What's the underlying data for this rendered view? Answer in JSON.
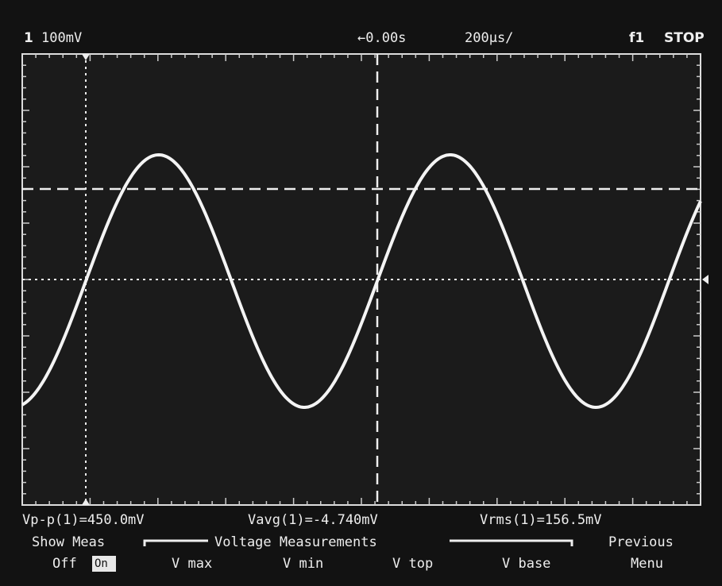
{
  "status_bar": {
    "channel": "1",
    "volts_per_div": "100mV",
    "time_offset": "←0.00s",
    "time_per_div": "200µs/",
    "trigger": "f1",
    "run_state": "STOP"
  },
  "measurements": [
    "Vp-p(1)=450.0mV",
    "Vavg(1)=-4.740mV",
    "Vrms(1)=156.5mV"
  ],
  "softkeys": {
    "show_meas": {
      "label": "Show Meas",
      "off": "Off",
      "on": "On"
    },
    "group": "Voltage Measurements",
    "keys": [
      "V max",
      "V min",
      "V top",
      "V base"
    ],
    "previous": {
      "line1": "Previous",
      "line2": "Menu"
    }
  }
}
